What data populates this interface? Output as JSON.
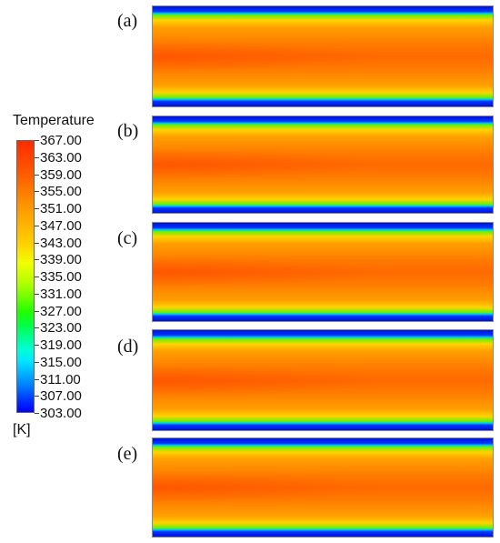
{
  "legend": {
    "title": "Temperature",
    "unit": "[K]",
    "ticks": [
      "367.00",
      "363.00",
      "359.00",
      "355.00",
      "351.00",
      "347.00",
      "343.00",
      "339.00",
      "335.00",
      "331.00",
      "327.00",
      "323.00",
      "319.00",
      "315.00",
      "311.00",
      "307.00",
      "303.00"
    ],
    "range": [
      303.0,
      367.0
    ]
  },
  "panels": [
    {
      "label": "(a)"
    },
    {
      "label": "(b)"
    },
    {
      "label": "(c)"
    },
    {
      "label": "(d)"
    },
    {
      "label": "(e)"
    }
  ],
  "colors": {
    "max": "#ff2a00",
    "mid": "#f1ff00",
    "min": "#0000ff"
  }
}
